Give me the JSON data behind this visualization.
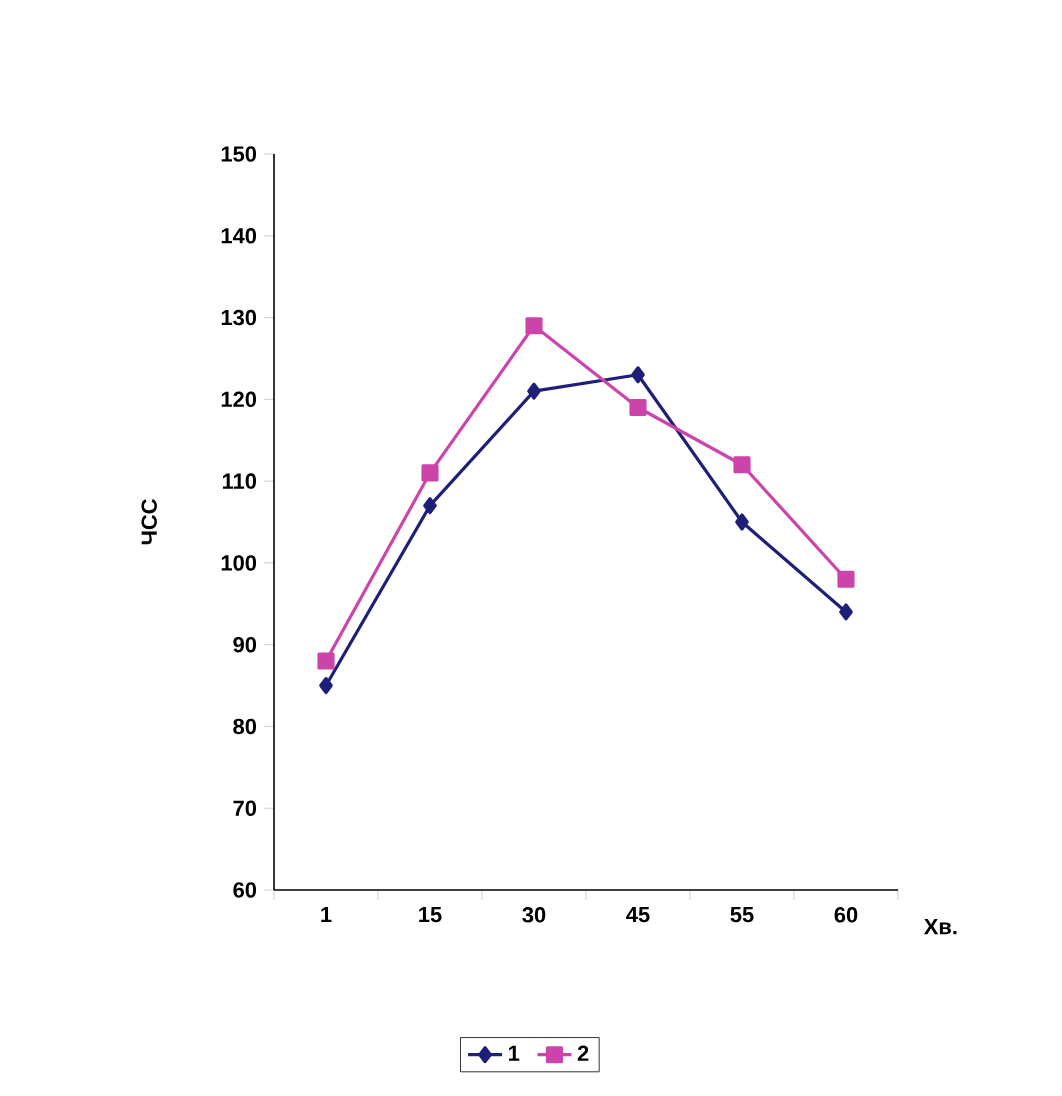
{
  "chart_data": {
    "type": "line",
    "ylabel": "ЧСС",
    "xlabel": "Хв.",
    "categories": [
      "1",
      "15",
      "30",
      "45",
      "55",
      "60"
    ],
    "series": [
      {
        "name": "1",
        "color": "#1f1f7a",
        "marker": "diamond",
        "values": [
          85,
          107,
          121,
          123,
          105,
          94
        ]
      },
      {
        "name": "2",
        "color": "#cc44aa",
        "marker": "square",
        "values": [
          88,
          111,
          129,
          119,
          112,
          98
        ]
      }
    ],
    "ylim": [
      60,
      150
    ],
    "yticks": [
      60,
      70,
      80,
      90,
      100,
      110,
      120,
      130,
      140,
      150
    ],
    "legend": "bottom",
    "grid": false
  }
}
